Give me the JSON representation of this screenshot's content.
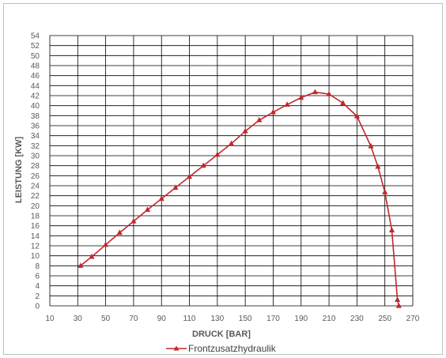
{
  "chart_data": {
    "type": "line",
    "xlabel": "DRUCK [BAR]",
    "ylabel": "LEISTUNG [KW]",
    "xlim": [
      10,
      270
    ],
    "ylim": [
      0,
      54
    ],
    "xticks": [
      10,
      30,
      50,
      70,
      90,
      110,
      130,
      150,
      170,
      190,
      210,
      230,
      250,
      270
    ],
    "yticks": [
      0,
      2,
      4,
      6,
      8,
      10,
      12,
      14,
      16,
      18,
      20,
      22,
      24,
      26,
      28,
      30,
      32,
      34,
      36,
      38,
      40,
      42,
      44,
      46,
      48,
      50,
      52,
      54
    ],
    "grid": true,
    "legend": "bottom-center",
    "series": [
      {
        "name": "Frontzusatzhydraulik",
        "color": "#c0282d",
        "marker": "triangle",
        "x": [
          32,
          40,
          50,
          60,
          70,
          80,
          90,
          100,
          110,
          120,
          130,
          140,
          150,
          160,
          170,
          180,
          190,
          200,
          210,
          220,
          230,
          240,
          245,
          250,
          255,
          259,
          260
        ],
        "y": [
          8.0,
          9.8,
          12.2,
          14.6,
          16.9,
          19.2,
          21.4,
          23.6,
          25.8,
          28.0,
          30.2,
          32.4,
          34.9,
          37.1,
          38.7,
          40.2,
          41.6,
          42.7,
          42.3,
          40.5,
          37.9,
          31.9,
          27.8,
          22.7,
          15.1,
          1.2,
          0.0
        ]
      }
    ]
  }
}
